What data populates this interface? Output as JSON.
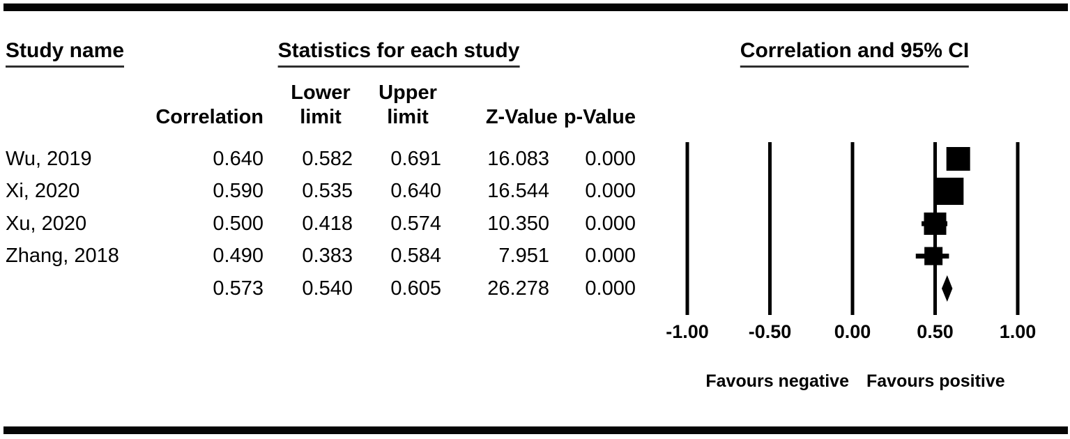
{
  "titles": {
    "study_name": "Study name",
    "statistics": "Statistics for each study",
    "correlation_ci": "Correlation and 95% CI"
  },
  "table": {
    "column_headers": {
      "correlation": "Correlation",
      "lower_limit_line1": "Lower",
      "lower_limit_line2": "limit",
      "upper_limit_line1": "Upper",
      "upper_limit_line2": "limit",
      "z_value": "Z-Value",
      "p_value": "p-Value"
    },
    "rows": [
      {
        "study": "Wu, 2019",
        "correlation": "0.640",
        "lower": "0.582",
        "upper": "0.691",
        "z": "16.083",
        "p": "0.000"
      },
      {
        "study": "Xi, 2020",
        "correlation": "0.590",
        "lower": "0.535",
        "upper": "0.640",
        "z": "16.544",
        "p": "0.000"
      },
      {
        "study": "Xu, 2020",
        "correlation": "0.500",
        "lower": "0.418",
        "upper": "0.574",
        "z": "10.350",
        "p": "0.000"
      },
      {
        "study": "Zhang, 2018",
        "correlation": "0.490",
        "lower": "0.383",
        "upper": "0.584",
        "z": "7.951",
        "p": "0.000"
      },
      {
        "study": "",
        "correlation": "0.573",
        "lower": "0.540",
        "upper": "0.605",
        "z": "26.278",
        "p": "0.000"
      }
    ]
  },
  "chart_data": {
    "type": "forest",
    "title": "Correlation and 95% CI",
    "xlabel": "",
    "xlim": [
      -1.0,
      1.0
    ],
    "x_ticks": [
      -1.0,
      -0.5,
      0.0,
      0.5,
      1.0
    ],
    "x_tick_labels": [
      "-1.00",
      "-0.50",
      "0.00",
      "0.50",
      "1.00"
    ],
    "grid": "vertical-lines-at-ticks",
    "legend_position": "none",
    "studies": [
      {
        "name": "Wu, 2019",
        "correlation": 0.64,
        "lower": 0.582,
        "upper": 0.691,
        "z": 16.083,
        "p": 0.0,
        "marker": "square",
        "marker_size_px": 34
      },
      {
        "name": "Xi, 2020",
        "correlation": 0.59,
        "lower": 0.535,
        "upper": 0.64,
        "z": 16.544,
        "p": 0.0,
        "marker": "square",
        "marker_size_px": 39
      },
      {
        "name": "Xu, 2020",
        "correlation": 0.5,
        "lower": 0.418,
        "upper": 0.574,
        "z": 10.35,
        "p": 0.0,
        "marker": "square",
        "marker_size_px": 32
      },
      {
        "name": "Zhang, 2018",
        "correlation": 0.49,
        "lower": 0.383,
        "upper": 0.584,
        "z": 7.951,
        "p": 0.0,
        "marker": "square",
        "marker_size_px": 26
      }
    ],
    "overall": {
      "correlation": 0.573,
      "lower": 0.54,
      "upper": 0.605,
      "z": 26.278,
      "p": 0.0,
      "marker": "diamond"
    },
    "favours_negative": "Favours negative",
    "favours_positive": "Favours positive",
    "color": "#000000"
  }
}
